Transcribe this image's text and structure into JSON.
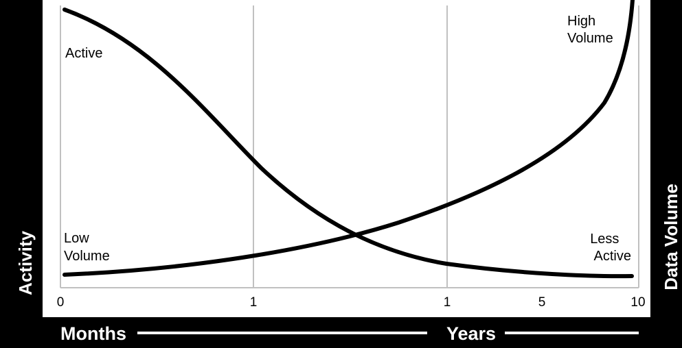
{
  "chart_data": {
    "type": "line",
    "left_axis_label": "Activity",
    "right_axis_label": "Data Volume",
    "x_tick_labels": [
      "0",
      "1",
      "1",
      "5",
      "10"
    ],
    "time_labels": {
      "months": "Months",
      "years": "Years"
    },
    "grid": true,
    "series": [
      {
        "labels": {
          "start": "Active",
          "end": "Less Active"
        },
        "trend": "decreasing",
        "color": "#000000"
      },
      {
        "labels": {
          "start": "Low Volume",
          "end": "High Volume"
        },
        "trend": "increasing",
        "color": "#000000"
      }
    ]
  },
  "colors": {
    "background": "#000000",
    "plot_background": "#ffffff",
    "gridline": "#c0c0c0",
    "curve": "#000000",
    "text_light": "#ffffff"
  }
}
